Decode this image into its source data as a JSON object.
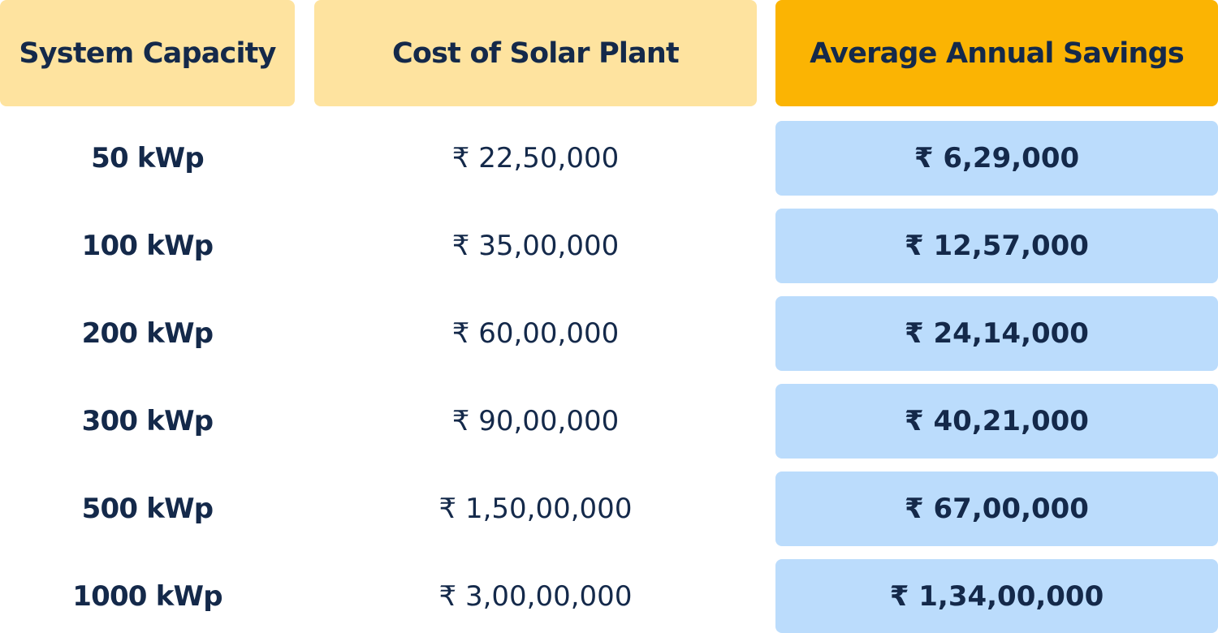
{
  "table": {
    "headers": [
      "System Capacity",
      "Cost of Solar Plant",
      "Average Annual Savings"
    ],
    "rows": [
      {
        "capacity": "50 kWp",
        "cost": "₹ 22,50,000",
        "savings": "₹ 6,29,000"
      },
      {
        "capacity": "100 kWp",
        "cost": "₹ 35,00,000",
        "savings": "₹ 12,57,000"
      },
      {
        "capacity": "200 kWp",
        "cost": "₹ 60,00,000",
        "savings": "₹ 24,14,000"
      },
      {
        "capacity": "300 kWp",
        "cost": "₹ 90,00,000",
        "savings": "₹ 40,21,000"
      },
      {
        "capacity": "500 kWp",
        "cost": "₹ 1,50,00,000",
        "savings": "₹ 67,00,000"
      },
      {
        "capacity": "1000 kWp",
        "cost": "₹ 3,00,00,000",
        "savings": "₹ 1,34,00,000"
      }
    ]
  },
  "colors": {
    "header_light": "#fee39f",
    "header_accent": "#fbb403",
    "savings_cell": "#bbdcfc",
    "text": "#14294a"
  }
}
